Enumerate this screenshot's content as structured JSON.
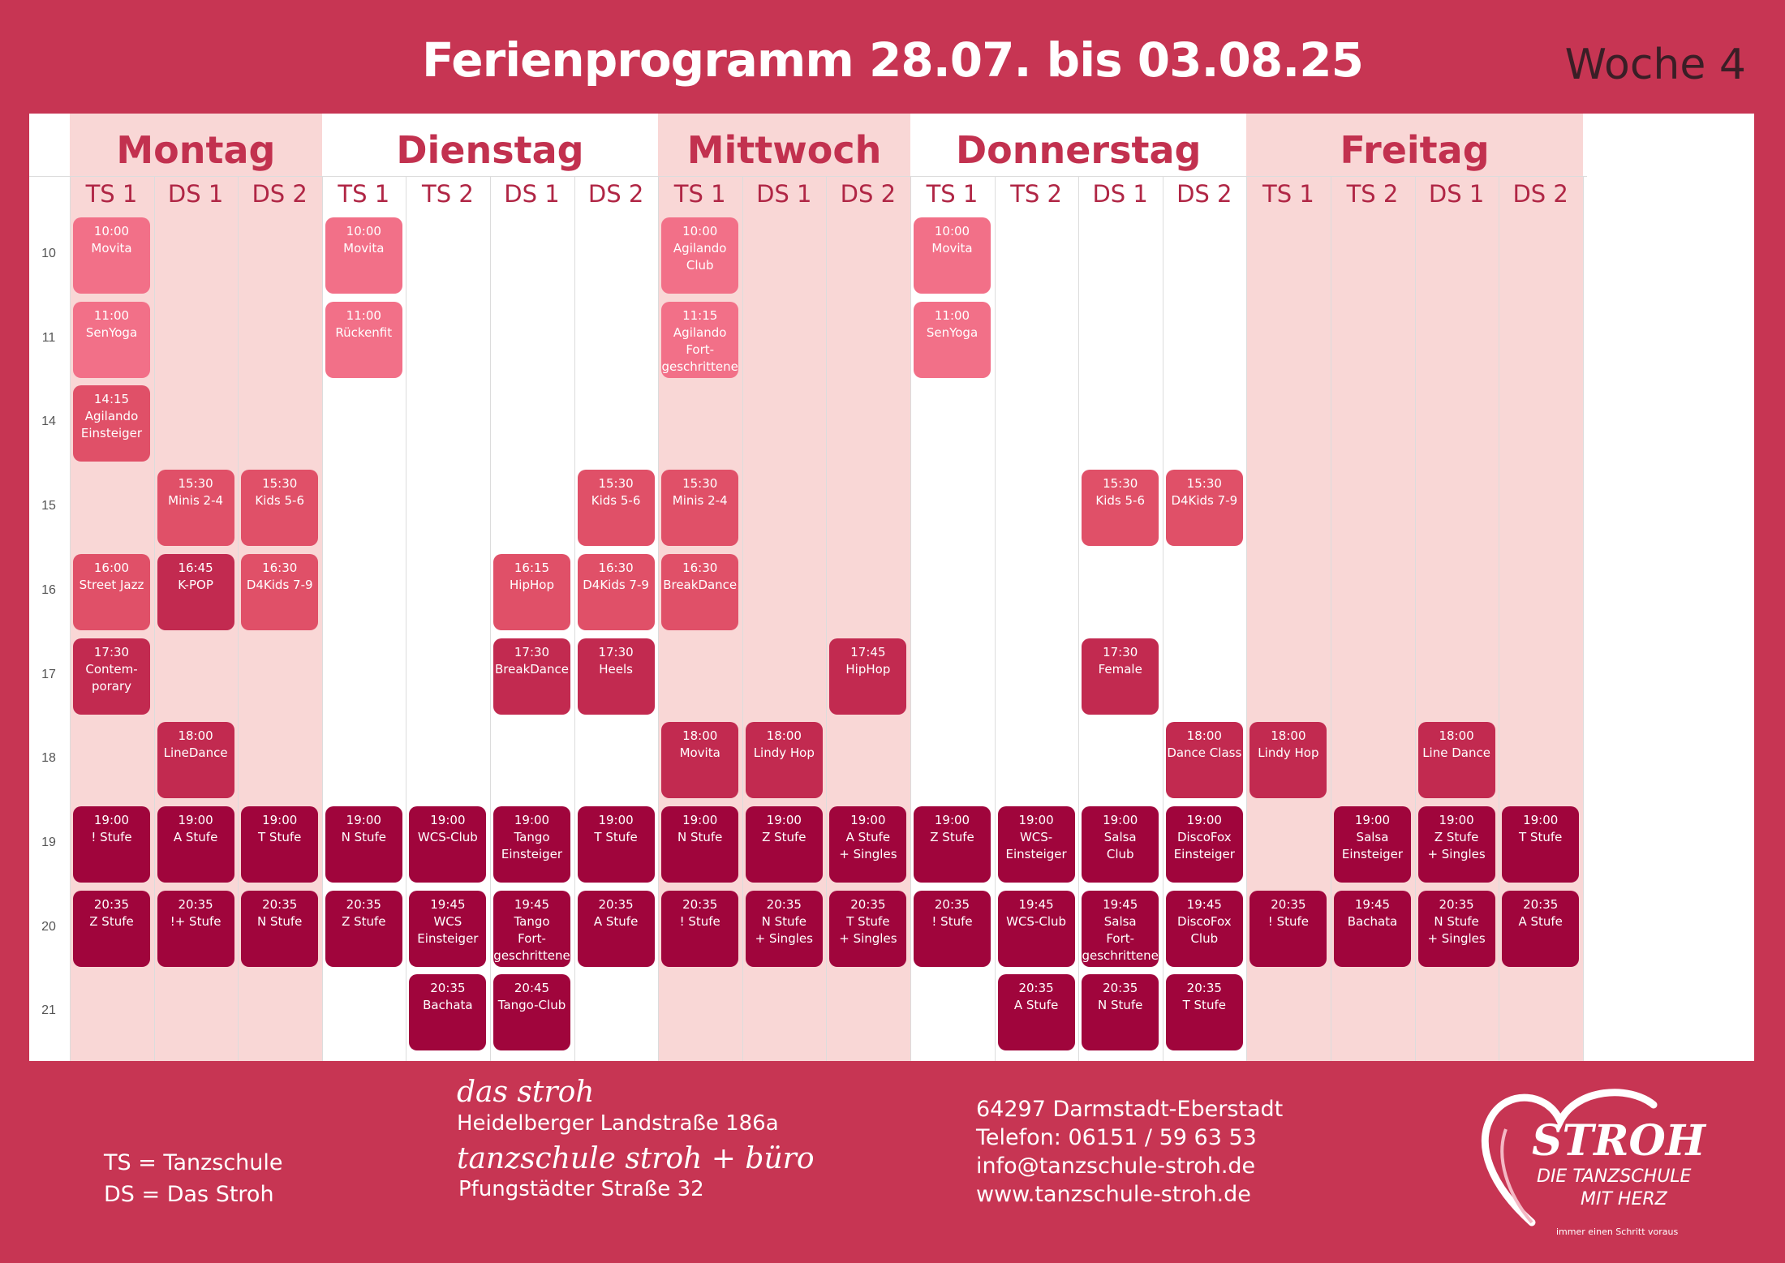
{
  "title": "Ferienprogramm 28.07. bis 03.08.25",
  "week": "Woche 4",
  "days": [
    {
      "name": "Montag",
      "columns": [
        "TS 1",
        "DS 1",
        "DS 2"
      ]
    },
    {
      "name": "Dienstag",
      "columns": [
        "TS 1",
        "TS 2",
        "DS 1",
        "DS 2"
      ]
    },
    {
      "name": "Mittwoch",
      "columns": [
        "TS 1",
        "DS 1",
        "DS 2"
      ]
    },
    {
      "name": "Donnerstag",
      "columns": [
        "TS 1",
        "TS 2",
        "DS 1",
        "DS 2"
      ]
    },
    {
      "name": "Freitag",
      "columns": [
        "TS 1",
        "TS 2",
        "DS 1",
        "DS 2"
      ]
    }
  ],
  "hours": [
    "10",
    "11",
    "14",
    "15",
    "16",
    "17",
    "18",
    "19",
    "20",
    "21"
  ],
  "classes": [
    {
      "col": 0,
      "row": 0,
      "time": "10:00",
      "name": "Movita",
      "shade": 1
    },
    {
      "col": 0,
      "row": 1,
      "time": "11:00",
      "name": "SenYoga",
      "shade": 1
    },
    {
      "col": 0,
      "row": 2,
      "time": "14:15",
      "name": "Agilando\nEinsteiger",
      "shade": 2
    },
    {
      "col": 0,
      "row": 4,
      "time": "16:00",
      "name": "Street Jazz",
      "shade": 2
    },
    {
      "col": 0,
      "row": 5,
      "time": "17:30",
      "name": "Contem-\nporary",
      "shade": 3
    },
    {
      "col": 0,
      "row": 7,
      "time": "19:00",
      "name": "! Stufe",
      "shade": 4
    },
    {
      "col": 0,
      "row": 8,
      "time": "20:35",
      "name": "Z Stufe",
      "shade": 4
    },
    {
      "col": 1,
      "row": 3,
      "time": "15:30",
      "name": "Minis 2-4",
      "shade": 2
    },
    {
      "col": 1,
      "row": 4,
      "time": "16:45",
      "name": "K-POP",
      "shade": 3
    },
    {
      "col": 1,
      "row": 6,
      "time": "18:00",
      "name": "LineDance",
      "shade": 3
    },
    {
      "col": 1,
      "row": 7,
      "time": "19:00",
      "name": "A Stufe",
      "shade": 4
    },
    {
      "col": 1,
      "row": 8,
      "time": "20:35",
      "name": "!+ Stufe",
      "shade": 4
    },
    {
      "col": 2,
      "row": 3,
      "time": "15:30",
      "name": "Kids 5-6",
      "shade": 2
    },
    {
      "col": 2,
      "row": 4,
      "time": "16:30",
      "name": "D4Kids 7-9",
      "shade": 2
    },
    {
      "col": 2,
      "row": 7,
      "time": "19:00",
      "name": "T Stufe",
      "shade": 4
    },
    {
      "col": 2,
      "row": 8,
      "time": "20:35",
      "name": "N Stufe",
      "shade": 4
    },
    {
      "col": 3,
      "row": 0,
      "time": "10:00",
      "name": "Movita",
      "shade": 1
    },
    {
      "col": 3,
      "row": 1,
      "time": "11:00",
      "name": "Rückenfit",
      "shade": 1
    },
    {
      "col": 3,
      "row": 7,
      "time": "19:00",
      "name": "N Stufe",
      "shade": 4
    },
    {
      "col": 3,
      "row": 8,
      "time": "20:35",
      "name": "Z Stufe",
      "shade": 4
    },
    {
      "col": 4,
      "row": 7,
      "time": "19:00",
      "name": "WCS-Club",
      "shade": 4
    },
    {
      "col": 4,
      "row": 8,
      "time": "19:45",
      "name": "WCS\nEinsteiger",
      "shade": 4
    },
    {
      "col": 4,
      "row": 9,
      "time": "20:35",
      "name": "Bachata",
      "shade": 4
    },
    {
      "col": 5,
      "row": 4,
      "time": "16:15",
      "name": "HipHop",
      "shade": 2
    },
    {
      "col": 5,
      "row": 5,
      "time": "17:30",
      "name": "BreakDance",
      "shade": 3
    },
    {
      "col": 5,
      "row": 7,
      "time": "19:00",
      "name": "Tango\nEinsteiger",
      "shade": 4
    },
    {
      "col": 5,
      "row": 8,
      "time": "19:45",
      "name": "Tango\nFort-\ngeschrittene",
      "shade": 4
    },
    {
      "col": 5,
      "row": 9,
      "time": "20:45",
      "name": "Tango-Club",
      "shade": 4
    },
    {
      "col": 6,
      "row": 3,
      "time": "15:30",
      "name": "Kids 5-6",
      "shade": 2
    },
    {
      "col": 6,
      "row": 4,
      "time": "16:30",
      "name": "D4Kids 7-9",
      "shade": 2
    },
    {
      "col": 6,
      "row": 5,
      "time": "17:30",
      "name": "Heels",
      "shade": 3
    },
    {
      "col": 6,
      "row": 7,
      "time": "19:00",
      "name": "T Stufe",
      "shade": 4
    },
    {
      "col": 6,
      "row": 8,
      "time": "20:35",
      "name": "A Stufe",
      "shade": 4
    },
    {
      "col": 7,
      "row": 0,
      "time": "10:00",
      "name": "Agilando\nClub",
      "shade": 1
    },
    {
      "col": 7,
      "row": 1,
      "time": "11:15",
      "name": "Agilando\nFort-\ngeschrittene",
      "shade": 1
    },
    {
      "col": 7,
      "row": 3,
      "time": "15:30",
      "name": "Minis 2-4",
      "shade": 2
    },
    {
      "col": 7,
      "row": 4,
      "time": "16:30",
      "name": "BreakDance",
      "shade": 2
    },
    {
      "col": 7,
      "row": 6,
      "time": "18:00",
      "name": "Movita",
      "shade": 3
    },
    {
      "col": 7,
      "row": 7,
      "time": "19:00",
      "name": "N Stufe",
      "shade": 4
    },
    {
      "col": 7,
      "row": 8,
      "time": "20:35",
      "name": "! Stufe",
      "shade": 4
    },
    {
      "col": 8,
      "row": 6,
      "time": "18:00",
      "name": "Lindy Hop",
      "shade": 3
    },
    {
      "col": 8,
      "row": 7,
      "time": "19:00",
      "name": "Z Stufe",
      "shade": 4
    },
    {
      "col": 8,
      "row": 8,
      "time": "20:35",
      "name": "N Stufe\n+ Singles",
      "shade": 4
    },
    {
      "col": 9,
      "row": 5,
      "time": "17:45",
      "name": "HipHop",
      "shade": 3
    },
    {
      "col": 9,
      "row": 7,
      "time": "19:00",
      "name": "A Stufe\n+ Singles",
      "shade": 4
    },
    {
      "col": 9,
      "row": 8,
      "time": "20:35",
      "name": "T Stufe\n+ Singles",
      "shade": 4
    },
    {
      "col": 10,
      "row": 0,
      "time": "10:00",
      "name": "Movita",
      "shade": 1
    },
    {
      "col": 10,
      "row": 1,
      "time": "11:00",
      "name": "SenYoga",
      "shade": 1
    },
    {
      "col": 10,
      "row": 7,
      "time": "19:00",
      "name": "Z Stufe",
      "shade": 4
    },
    {
      "col": 10,
      "row": 8,
      "time": "20:35",
      "name": "! Stufe",
      "shade": 4
    },
    {
      "col": 11,
      "row": 7,
      "time": "19:00",
      "name": "WCS-\nEinsteiger",
      "shade": 4
    },
    {
      "col": 11,
      "row": 8,
      "time": "19:45",
      "name": "WCS-Club",
      "shade": 4
    },
    {
      "col": 11,
      "row": 9,
      "time": "20:35",
      "name": "A Stufe",
      "shade": 4
    },
    {
      "col": 12,
      "row": 3,
      "time": "15:30",
      "name": "Kids 5-6",
      "shade": 2
    },
    {
      "col": 12,
      "row": 5,
      "time": "17:30",
      "name": "Female",
      "shade": 3
    },
    {
      "col": 12,
      "row": 7,
      "time": "19:00",
      "name": "Salsa\nClub",
      "shade": 4
    },
    {
      "col": 12,
      "row": 8,
      "time": "19:45",
      "name": "Salsa\nFort-\ngeschrittene",
      "shade": 4
    },
    {
      "col": 12,
      "row": 9,
      "time": "20:35",
      "name": "N Stufe",
      "shade": 4
    },
    {
      "col": 13,
      "row": 3,
      "time": "15:30",
      "name": "D4Kids 7-9",
      "shade": 2
    },
    {
      "col": 13,
      "row": 6,
      "time": "18:00",
      "name": "Dance Class",
      "shade": 3
    },
    {
      "col": 13,
      "row": 7,
      "time": "19:00",
      "name": "DiscoFox\nEinsteiger",
      "shade": 4
    },
    {
      "col": 13,
      "row": 8,
      "time": "19:45",
      "name": "DiscoFox\nClub",
      "shade": 4
    },
    {
      "col": 13,
      "row": 9,
      "time": "20:35",
      "name": "T Stufe",
      "shade": 4
    },
    {
      "col": 14,
      "row": 6,
      "time": "18:00",
      "name": "Lindy Hop",
      "shade": 3
    },
    {
      "col": 14,
      "row": 8,
      "time": "20:35",
      "name": "! Stufe",
      "shade": 4
    },
    {
      "col": 15,
      "row": 7,
      "time": "19:00",
      "name": "Salsa\nEinsteiger",
      "shade": 4
    },
    {
      "col": 15,
      "row": 8,
      "time": "19:45",
      "name": "Bachata",
      "shade": 4
    },
    {
      "col": 16,
      "row": 6,
      "time": "18:00",
      "name": "Line Dance",
      "shade": 3
    },
    {
      "col": 16,
      "row": 7,
      "time": "19:00",
      "name": "Z Stufe\n+ Singles",
      "shade": 4
    },
    {
      "col": 16,
      "row": 8,
      "time": "20:35",
      "name": "N Stufe\n+ Singles",
      "shade": 4
    },
    {
      "col": 17,
      "row": 7,
      "time": "19:00",
      "name": "T Stufe",
      "shade": 4
    },
    {
      "col": 17,
      "row": 8,
      "time": "20:35",
      "name": "A Stufe",
      "shade": 4
    }
  ],
  "colors": {
    "background": "#c73553",
    "day_band": "#f9d7d6",
    "shade_1": "#f27088",
    "shade_2": "#e05068",
    "shade_3": "#c22a50",
    "shade_4": "#a0053c"
  },
  "legend": {
    "ts": "TS = Tanzschule",
    "ds": "DS = Das Stroh"
  },
  "address": {
    "venue1": "das stroh",
    "street1": "Heidelberger Landstraße 186a",
    "venue2": "tanzschule stroh + büro",
    "street2": "Pfungstädter Straße 32"
  },
  "contact": {
    "city": "64297 Darmstadt-Eberstadt",
    "phone": "Telefon: 06151 / 59 63 53",
    "email": "info@tanzschule-stroh.de",
    "web": "www.tanzschule-stroh.de"
  },
  "logo": {
    "brand": "STROH",
    "line1": "DIE TANZSCHULE",
    "line2": "MIT HERZ",
    "tagline": "immer einen Schritt voraus",
    "icon": "heart-icon"
  }
}
